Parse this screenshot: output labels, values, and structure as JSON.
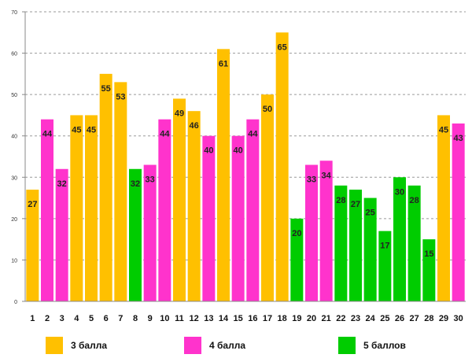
{
  "chart_data": {
    "type": "bar",
    "title": "",
    "xlabel": "",
    "ylabel": "",
    "ylim": [
      0,
      70
    ],
    "yticks": [
      0,
      10,
      20,
      30,
      40,
      50,
      60,
      70
    ],
    "grid": true,
    "categories": [
      "1",
      "2",
      "3",
      "4",
      "5",
      "6",
      "7",
      "8",
      "9",
      "10",
      "11",
      "12",
      "13",
      "14",
      "15",
      "16",
      "17",
      "18",
      "19",
      "20",
      "21",
      "22",
      "23",
      "24",
      "25",
      "26",
      "27",
      "28",
      "29",
      "30"
    ],
    "values": [
      27,
      44,
      32,
      45,
      45,
      55,
      53,
      32,
      33,
      44,
      49,
      46,
      40,
      61,
      40,
      44,
      50,
      65,
      20,
      33,
      34,
      28,
      27,
      25,
      17,
      30,
      28,
      15,
      45,
      43
    ],
    "value_labels": [
      "27",
      "44",
      "32",
      "45",
      "45",
      "55",
      "53",
      "32",
      "33",
      "44",
      "49",
      "46",
      "40",
      "61",
      "40",
      "44",
      "50",
      "65",
      "20",
      "33",
      "34",
      "28",
      "27",
      "25",
      "17",
      "30",
      "28",
      "15",
      "45",
      "43"
    ],
    "bar_groups": [
      1,
      2,
      2,
      1,
      1,
      1,
      1,
      3,
      2,
      2,
      1,
      1,
      2,
      1,
      2,
      2,
      1,
      1,
      3,
      2,
      2,
      3,
      3,
      3,
      3,
      3,
      3,
      3,
      1,
      2
    ],
    "legend": [
      {
        "label": "3 балла",
        "color": "#FFC000"
      },
      {
        "label": "4 балла",
        "color": "#FF33CC"
      },
      {
        "label": "5 баллов",
        "color": "#00CC00"
      }
    ],
    "legend_position": "bottom"
  }
}
